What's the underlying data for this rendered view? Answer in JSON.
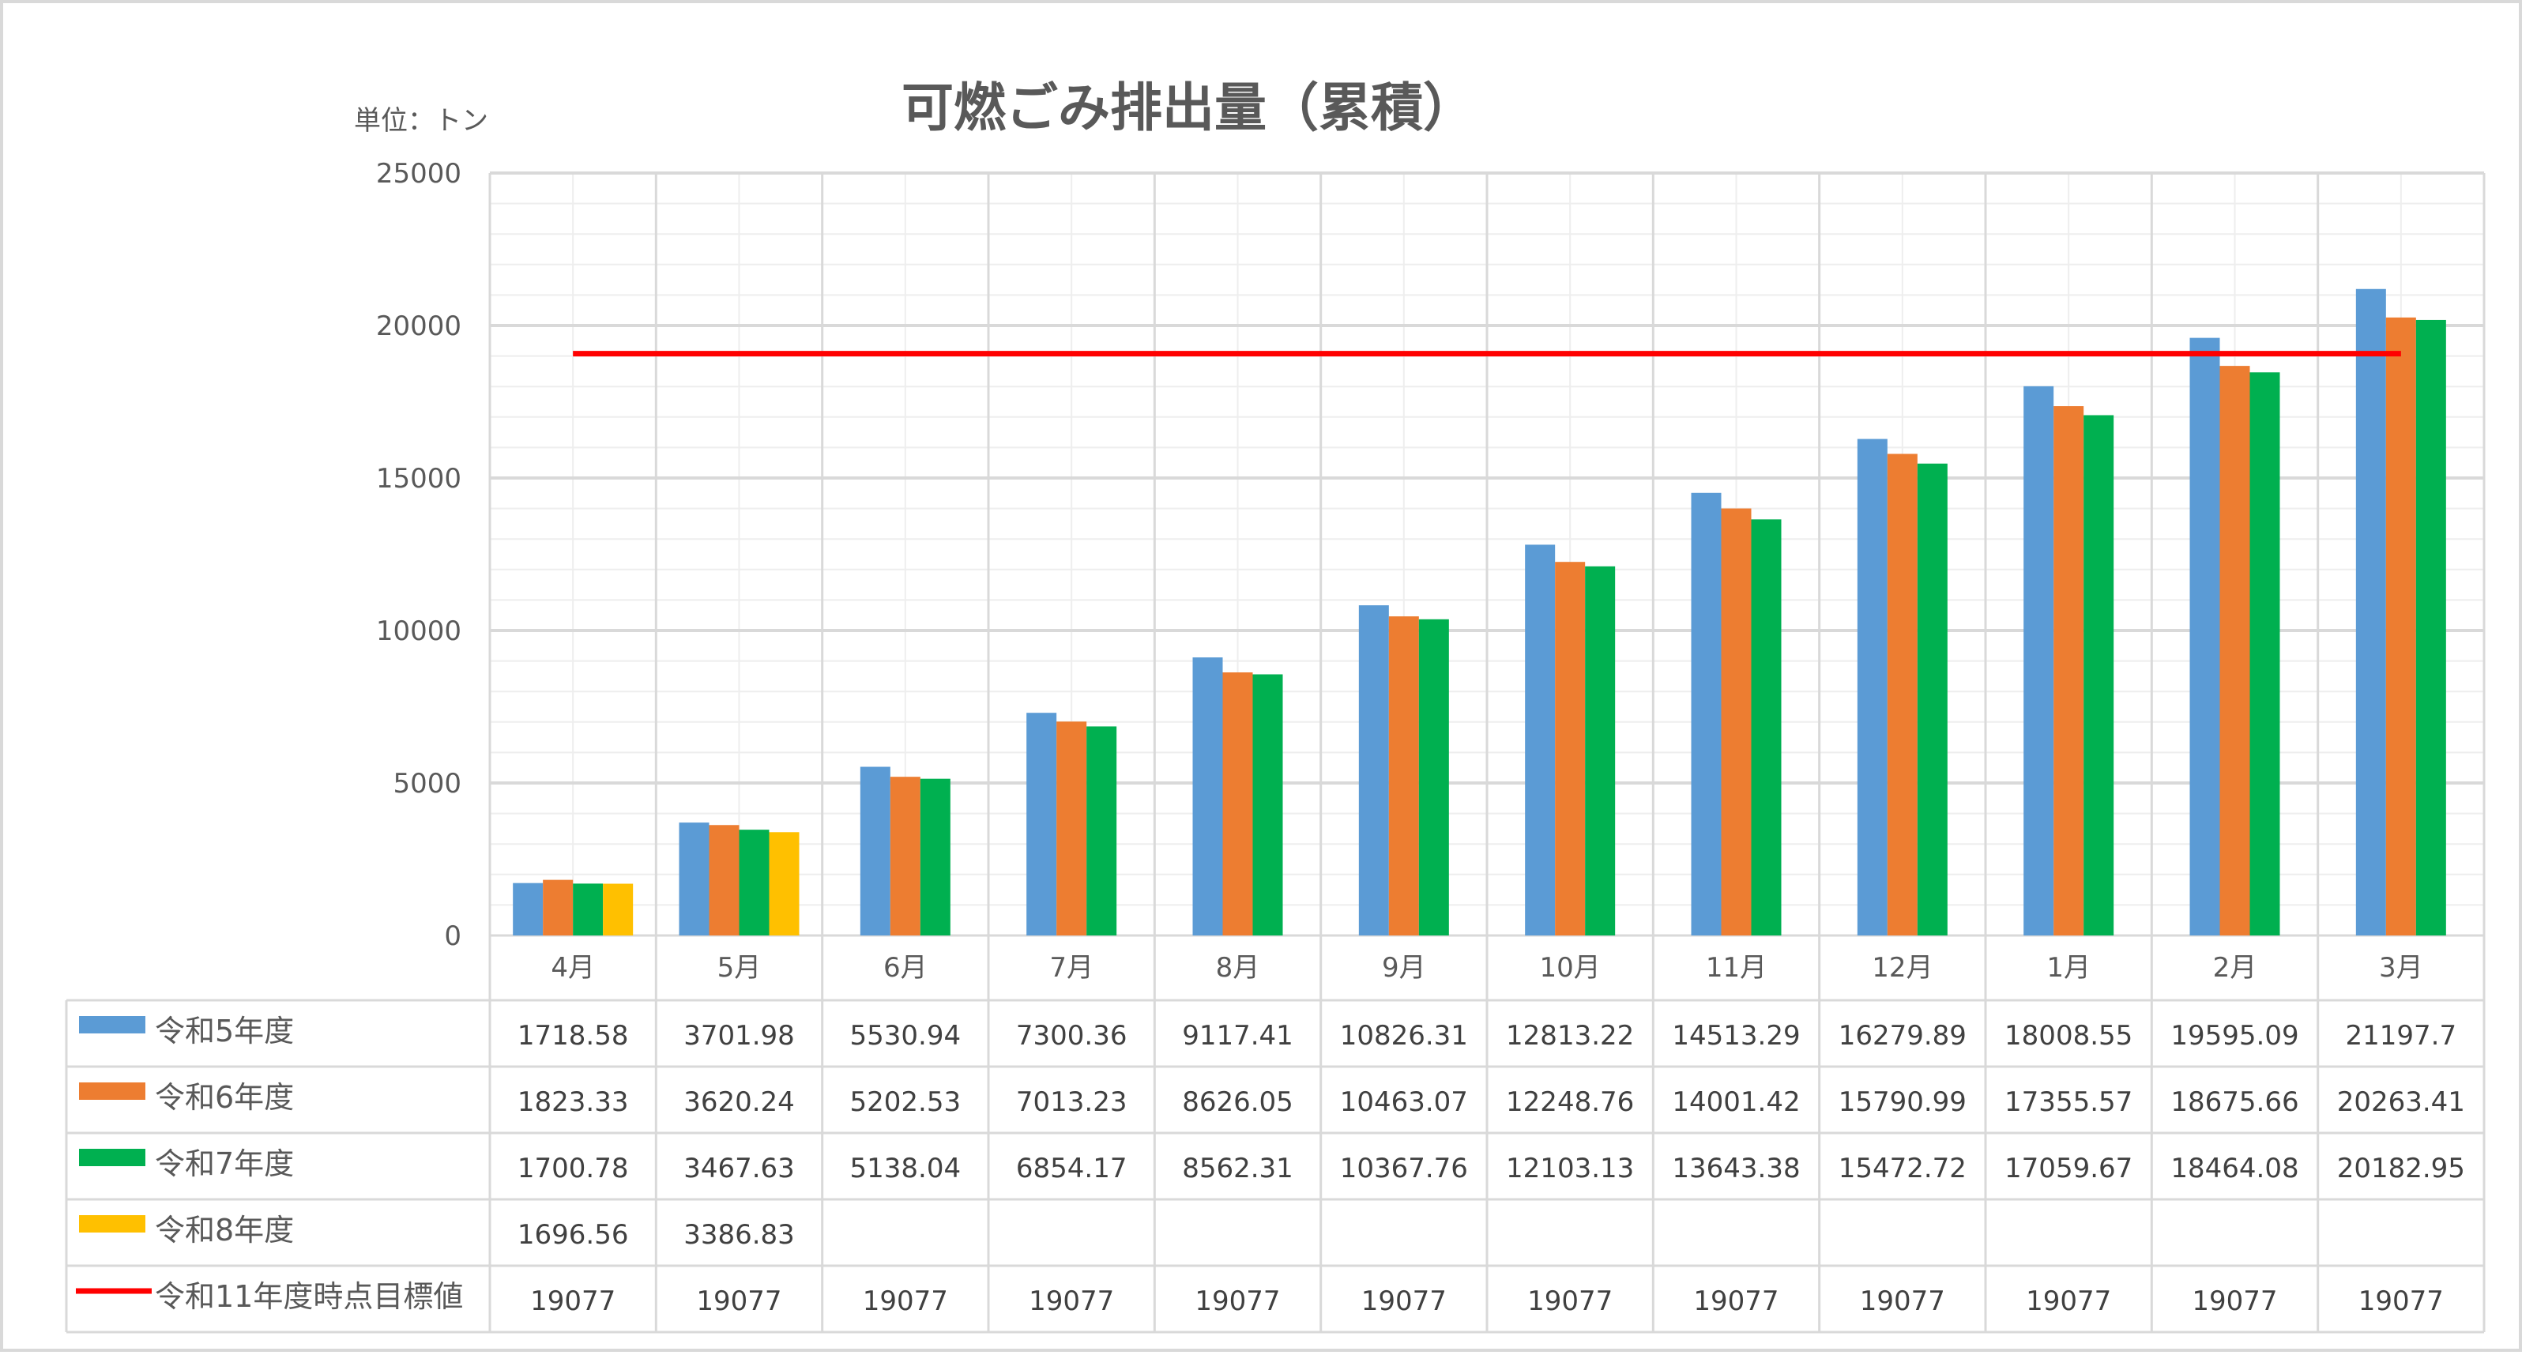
{
  "chart_data": {
    "type": "bar",
    "title": "可燃ごみ排出量（累積）",
    "unit_label": "単位：トン",
    "categories": [
      "4月",
      "5月",
      "6月",
      "7月",
      "8月",
      "9月",
      "10月",
      "11月",
      "12月",
      "1月",
      "2月",
      "3月"
    ],
    "ylim": [
      0,
      25000
    ],
    "yticks": [
      "0",
      "5000",
      "10000",
      "15000",
      "20000",
      "25000"
    ],
    "grid": true,
    "legend_position": "data-table",
    "series": [
      {
        "name": "令和5年度",
        "kind": "bar",
        "color": "#5b9bd5",
        "values": [
          1718.58,
          3701.98,
          5530.94,
          7300.36,
          9117.41,
          10826.31,
          12813.22,
          14513.29,
          16279.89,
          18008.55,
          19595.09,
          21197.7
        ],
        "labels": [
          "1718.58",
          "3701.98",
          "5530.94",
          "7300.36",
          "9117.41",
          "10826.31",
          "12813.22",
          "14513.29",
          "16279.89",
          "18008.55",
          "19595.09",
          "21197.7"
        ]
      },
      {
        "name": "令和6年度",
        "kind": "bar",
        "color": "#ed7d31",
        "values": [
          1823.33,
          3620.24,
          5202.53,
          7013.23,
          8626.05,
          10463.07,
          12248.76,
          14001.42,
          15790.99,
          17355.57,
          18675.66,
          20263.41
        ],
        "labels": [
          "1823.33",
          "3620.24",
          "5202.53",
          "7013.23",
          "8626.05",
          "10463.07",
          "12248.76",
          "14001.42",
          "15790.99",
          "17355.57",
          "18675.66",
          "20263.41"
        ]
      },
      {
        "name": "令和7年度",
        "kind": "bar",
        "color": "#00b050",
        "values": [
          1700.78,
          3467.63,
          5138.04,
          6854.17,
          8562.31,
          10367.76,
          12103.13,
          13643.38,
          15472.72,
          17059.67,
          18464.08,
          20182.95
        ],
        "labels": [
          "1700.78",
          "3467.63",
          "5138.04",
          "6854.17",
          "8562.31",
          "10367.76",
          "12103.13",
          "13643.38",
          "15472.72",
          "17059.67",
          "18464.08",
          "20182.95"
        ]
      },
      {
        "name": "令和8年度",
        "kind": "bar",
        "color": "#ffc000",
        "values": [
          1696.56,
          3386.83,
          null,
          null,
          null,
          null,
          null,
          null,
          null,
          null,
          null,
          null
        ],
        "labels": [
          "1696.56",
          "3386.83",
          "",
          "",
          "",
          "",
          "",
          "",
          "",
          "",
          "",
          ""
        ]
      },
      {
        "name": "令和11年度時点目標値",
        "kind": "line",
        "color": "#ff0000",
        "values": [
          19077,
          19077,
          19077,
          19077,
          19077,
          19077,
          19077,
          19077,
          19077,
          19077,
          19077,
          19077
        ],
        "labels": [
          "19077",
          "19077",
          "19077",
          "19077",
          "19077",
          "19077",
          "19077",
          "19077",
          "19077",
          "19077",
          "19077",
          "19077"
        ]
      }
    ]
  }
}
